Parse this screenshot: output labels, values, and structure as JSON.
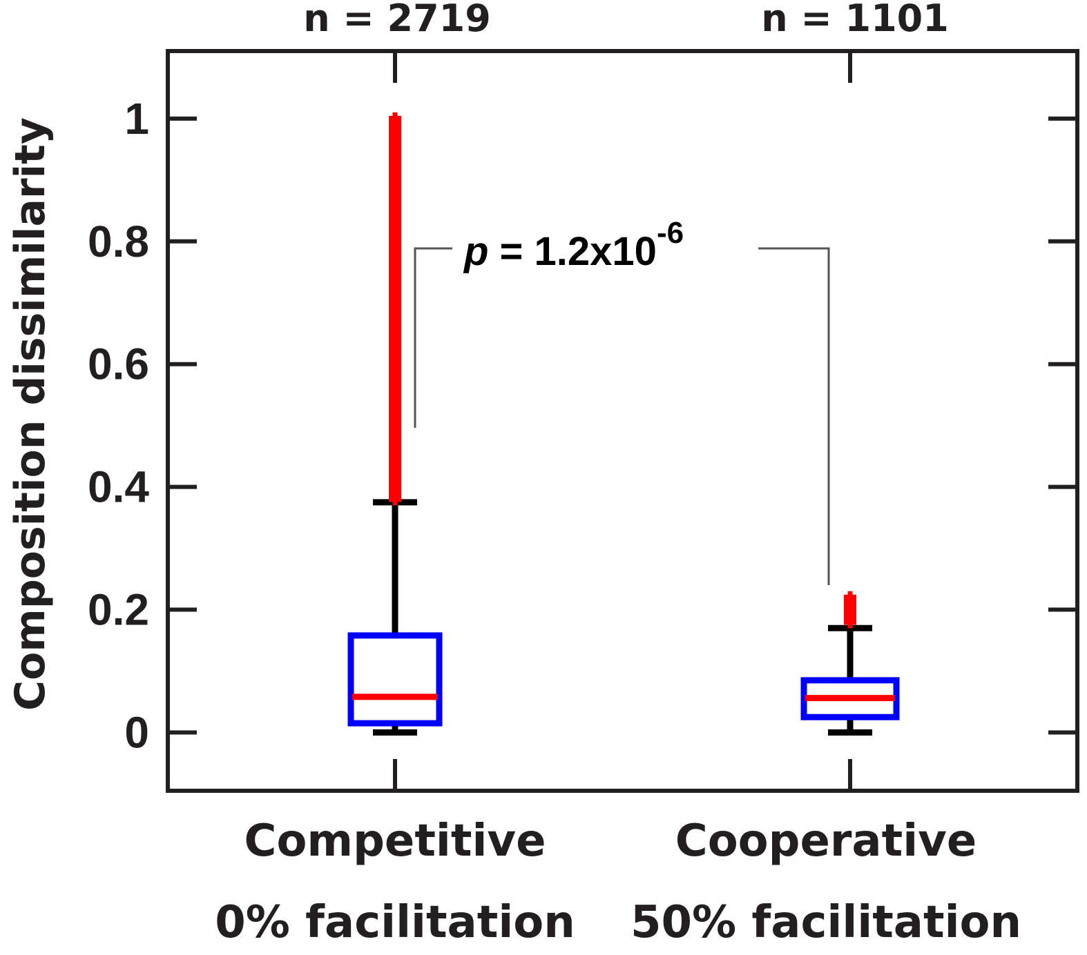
{
  "chart_data": {
    "type": "box",
    "title": "",
    "xlabel": "",
    "ylabel": "Composition dissimilarity",
    "ylim": [
      -0.095,
      1.11
    ],
    "yticks": [
      "0",
      "0.2",
      "0.4",
      "0.6",
      "0.8",
      "1"
    ],
    "ytick_values": [
      0,
      0.2,
      0.4,
      0.6,
      0.8,
      1
    ],
    "grid": false,
    "colors": {
      "box": "#0000ff",
      "median": "#ff0000",
      "whisker": "#000000",
      "outlier": "#ff0000",
      "axis": "#231f20",
      "bracket": "#555555"
    },
    "groups": [
      {
        "label_line1": "Competitive",
        "label_line2": "0% facilitation",
        "n_label": "n = 2719",
        "min": 0.0,
        "q1": 0.015,
        "median": 0.058,
        "q3": 0.158,
        "max": 0.375,
        "outliers": [
          0.38,
          0.39,
          0.4,
          0.41,
          0.42,
          0.43,
          0.44,
          0.45,
          0.46,
          0.47,
          0.48,
          0.49,
          0.5,
          0.51,
          0.52,
          0.53,
          0.54,
          0.55,
          0.56,
          0.57,
          0.58,
          0.59,
          0.6,
          0.61,
          0.62,
          0.63,
          0.64,
          0.65,
          0.66,
          0.67,
          0.68,
          0.69,
          0.7,
          0.71,
          0.72,
          0.73,
          0.75,
          0.76,
          0.77,
          0.78,
          0.79,
          0.8,
          0.82,
          0.83,
          0.84,
          0.85,
          0.86,
          0.87,
          0.88,
          0.89,
          0.9,
          0.92,
          0.93,
          0.95,
          0.96,
          0.98,
          0.99,
          1.0
        ]
      },
      {
        "label_line1": "Cooperative",
        "label_line2": "50% facilitation",
        "n_label": "n = 1101",
        "min": 0.0,
        "q1": 0.025,
        "median": 0.056,
        "q3": 0.085,
        "max": 0.17,
        "outliers": [
          0.18,
          0.19,
          0.2,
          0.21,
          0.22
        ]
      }
    ],
    "annotation": {
      "p_prefix": "p",
      "p_text": " = 1.2x10",
      "p_exponent": "-6"
    }
  }
}
